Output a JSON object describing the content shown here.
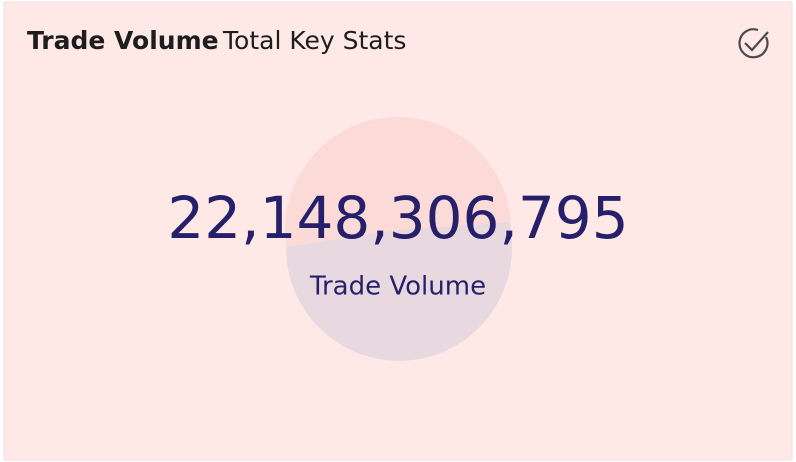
{
  "header": {
    "title": "Trade Volume",
    "subtitle": "Total Key Stats"
  },
  "kpi": {
    "value": "22,148,306,795",
    "label": "Trade Volume"
  }
}
